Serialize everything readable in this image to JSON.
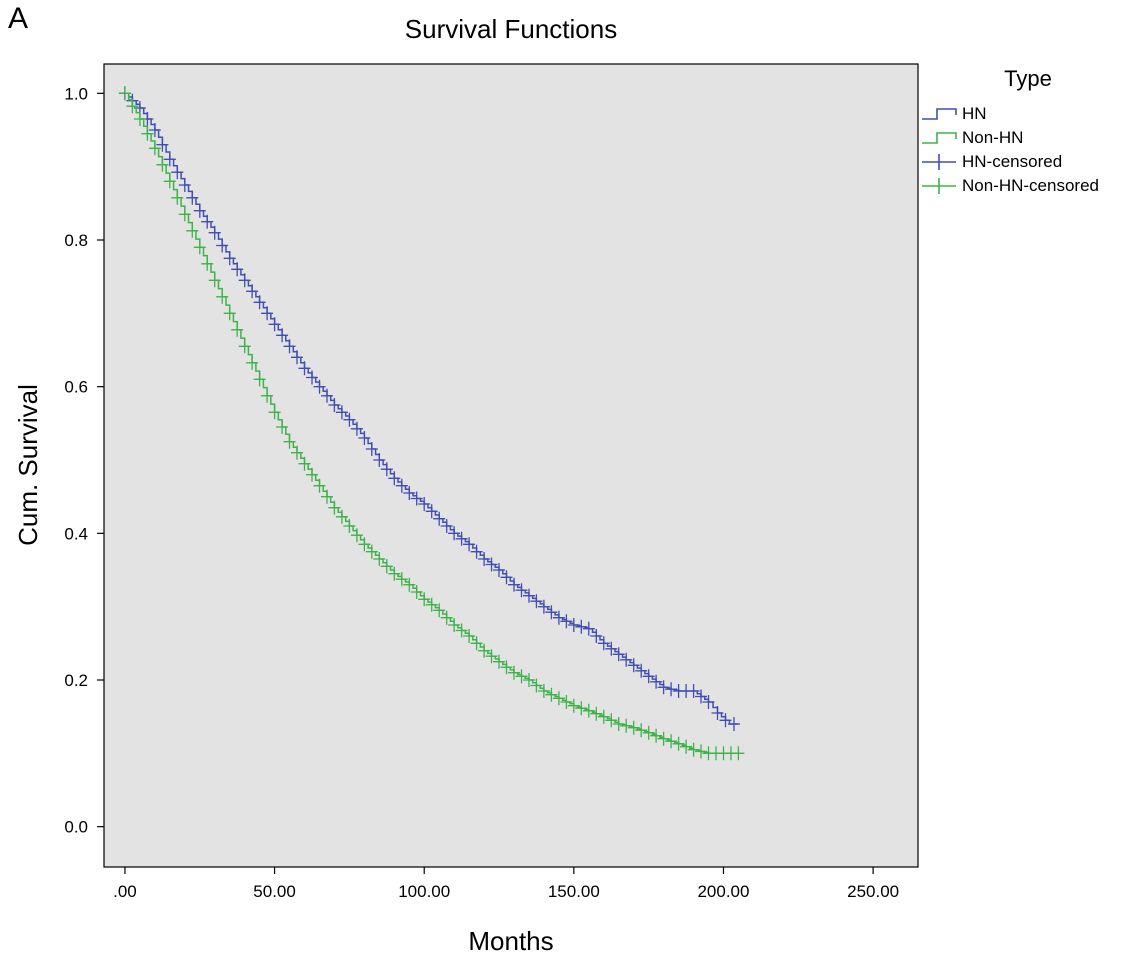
{
  "panel_label": "A",
  "legend": {
    "title": "Type",
    "items": [
      {
        "label": "HN",
        "kind": "step",
        "color": "#3f4fb5"
      },
      {
        "label": "Non-HN",
        "kind": "step",
        "color": "#3fb34a"
      },
      {
        "label": "HN-censored",
        "kind": "cross",
        "color": "#3f4fb5"
      },
      {
        "label": "Non-HN-censored",
        "kind": "cross",
        "color": "#3fb34a"
      }
    ]
  },
  "chart_data": {
    "type": "line",
    "title": "Survival Functions",
    "xlabel": "Months",
    "ylabel": "Cum. Survival",
    "xlim": [
      -7,
      265
    ],
    "ylim": [
      -0.055,
      1.04
    ],
    "xticks": [
      0,
      50,
      100,
      150,
      200,
      250
    ],
    "xtick_labels": [
      ".00",
      "50.00",
      "100.00",
      "150.00",
      "200.00",
      "250.00"
    ],
    "yticks": [
      0.0,
      0.2,
      0.4,
      0.6,
      0.8,
      1.0
    ],
    "ytick_labels": [
      "0.0",
      "0.2",
      "0.4",
      "0.6",
      "0.8",
      "1.0"
    ],
    "grid": false,
    "plot_background": "#e3e3e3",
    "legend_position": "right",
    "series": [
      {
        "name": "HN",
        "color": "#3f4fb5",
        "points": [
          [
            0,
            1.0
          ],
          [
            5,
            0.98
          ],
          [
            10,
            0.95
          ],
          [
            15,
            0.91
          ],
          [
            20,
            0.875
          ],
          [
            25,
            0.84
          ],
          [
            30,
            0.81
          ],
          [
            35,
            0.775
          ],
          [
            40,
            0.745
          ],
          [
            45,
            0.715
          ],
          [
            50,
            0.685
          ],
          [
            55,
            0.655
          ],
          [
            60,
            0.625
          ],
          [
            65,
            0.6
          ],
          [
            70,
            0.575
          ],
          [
            75,
            0.555
          ],
          [
            80,
            0.53
          ],
          [
            85,
            0.5
          ],
          [
            90,
            0.475
          ],
          [
            95,
            0.455
          ],
          [
            100,
            0.44
          ],
          [
            105,
            0.42
          ],
          [
            110,
            0.4
          ],
          [
            115,
            0.385
          ],
          [
            120,
            0.365
          ],
          [
            125,
            0.35
          ],
          [
            130,
            0.33
          ],
          [
            135,
            0.315
          ],
          [
            140,
            0.3
          ],
          [
            145,
            0.285
          ],
          [
            150,
            0.275
          ],
          [
            155,
            0.27
          ],
          [
            160,
            0.25
          ],
          [
            165,
            0.235
          ],
          [
            170,
            0.22
          ],
          [
            175,
            0.205
          ],
          [
            180,
            0.19
          ],
          [
            185,
            0.185
          ],
          [
            190,
            0.185
          ],
          [
            195,
            0.17
          ],
          [
            198,
            0.155
          ],
          [
            202,
            0.14
          ],
          [
            205,
            0.14
          ]
        ]
      },
      {
        "name": "Non-HN",
        "color": "#3fb34a",
        "points": [
          [
            0,
            1.0
          ],
          [
            5,
            0.965
          ],
          [
            10,
            0.925
          ],
          [
            15,
            0.88
          ],
          [
            20,
            0.835
          ],
          [
            25,
            0.79
          ],
          [
            30,
            0.745
          ],
          [
            35,
            0.7
          ],
          [
            40,
            0.655
          ],
          [
            45,
            0.61
          ],
          [
            50,
            0.565
          ],
          [
            55,
            0.525
          ],
          [
            60,
            0.495
          ],
          [
            65,
            0.465
          ],
          [
            70,
            0.435
          ],
          [
            75,
            0.41
          ],
          [
            80,
            0.385
          ],
          [
            85,
            0.365
          ],
          [
            90,
            0.345
          ],
          [
            95,
            0.33
          ],
          [
            100,
            0.31
          ],
          [
            105,
            0.295
          ],
          [
            110,
            0.275
          ],
          [
            115,
            0.26
          ],
          [
            120,
            0.24
          ],
          [
            125,
            0.225
          ],
          [
            130,
            0.21
          ],
          [
            135,
            0.2
          ],
          [
            140,
            0.185
          ],
          [
            145,
            0.175
          ],
          [
            150,
            0.165
          ],
          [
            155,
            0.158
          ],
          [
            160,
            0.15
          ],
          [
            165,
            0.14
          ],
          [
            170,
            0.135
          ],
          [
            175,
            0.128
          ],
          [
            180,
            0.12
          ],
          [
            185,
            0.113
          ],
          [
            190,
            0.105
          ],
          [
            195,
            0.1
          ],
          [
            200,
            0.1
          ],
          [
            205,
            0.1
          ]
        ]
      }
    ]
  }
}
